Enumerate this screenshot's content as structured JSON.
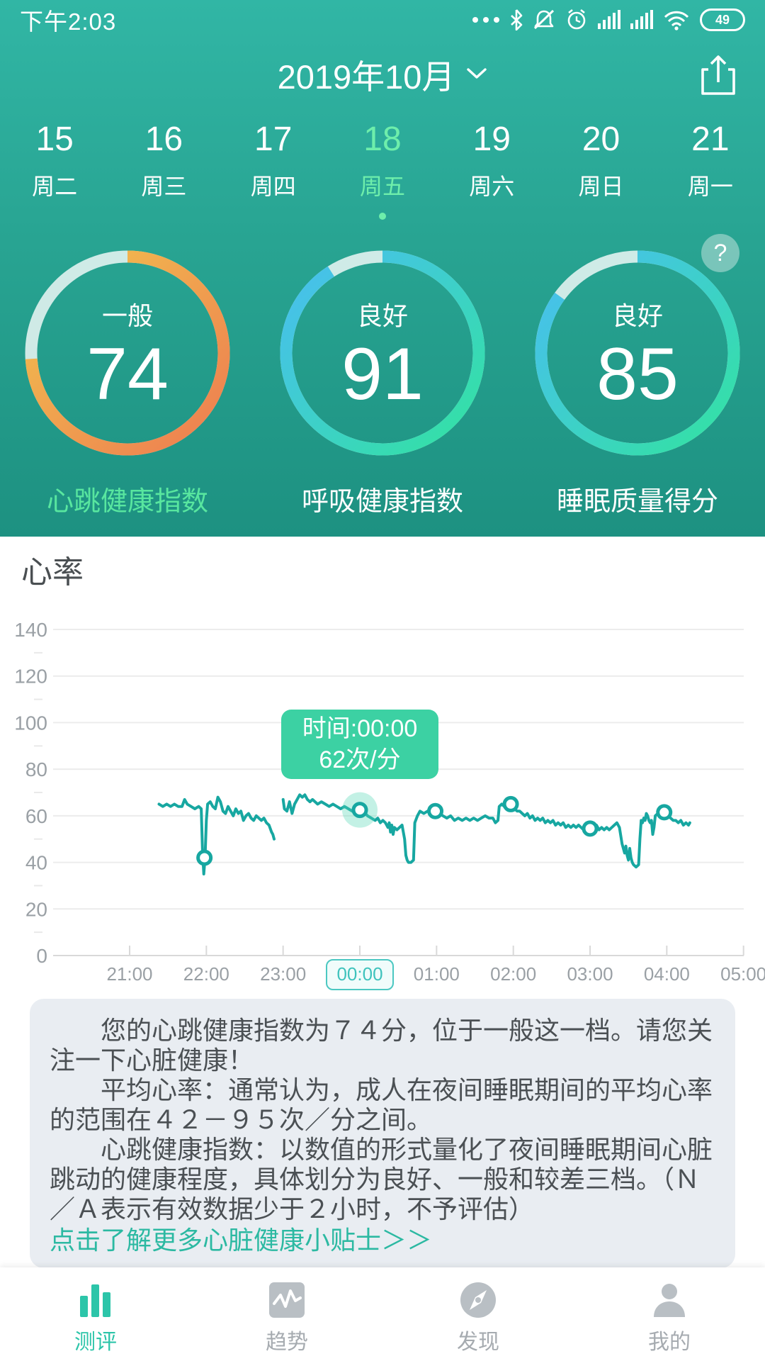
{
  "colors": {
    "accent": "#2cc5a9",
    "hero_top": "#31b6a5",
    "hero_bottom": "#1d9181",
    "selected_day": "#6eeeab",
    "gauge_track": "rgba(255,255,255,0.78)",
    "line": "#17a7a1",
    "tooltip_bg": "#3cd1a3",
    "link": "#2cb9a2",
    "inactive_icon": "#b9bfc4"
  },
  "status_bar": {
    "time": "下午2:03",
    "battery_percent": "49",
    "icons": [
      "more-dots",
      "bluetooth",
      "mute",
      "alarm-clock",
      "signal",
      "signal",
      "wifi",
      "battery"
    ]
  },
  "header": {
    "month": "2019年10月"
  },
  "date_picker": {
    "days": [
      {
        "date": "15",
        "weekday": "周二",
        "selected": false
      },
      {
        "date": "16",
        "weekday": "周三",
        "selected": false
      },
      {
        "date": "17",
        "weekday": "周四",
        "selected": false
      },
      {
        "date": "18",
        "weekday": "周五",
        "selected": true
      },
      {
        "date": "19",
        "weekday": "周六",
        "selected": false
      },
      {
        "date": "20",
        "weekday": "周日",
        "selected": false
      },
      {
        "date": "21",
        "weekday": "周一",
        "selected": false
      }
    ]
  },
  "gauges": [
    {
      "status": "一般",
      "score": "74",
      "percent": 74,
      "label": "心跳健康指数",
      "color_start": "#f2c44e",
      "color_end": "#ed7c50",
      "selected": true
    },
    {
      "status": "良好",
      "score": "91",
      "percent": 91,
      "label": "呼吸健康指数",
      "color_start": "#49bdf2",
      "color_end": "#32e3a0",
      "selected": false
    },
    {
      "status": "良好",
      "score": "85",
      "percent": 85,
      "label": "睡眠质量得分",
      "color_start": "#49bdf2",
      "color_end": "#32e3a0",
      "selected": false
    }
  ],
  "help": {
    "glyph": "?"
  },
  "chart_section": {
    "title": "心率"
  },
  "chart_data": {
    "type": "line",
    "title": "心率",
    "xlabel": "",
    "ylabel": "次/分",
    "ylim": [
      0,
      140
    ],
    "yticks": [
      0,
      20,
      40,
      60,
      80,
      100,
      120,
      140
    ],
    "grid": true,
    "x_unit": "minutes_from_21:00",
    "xticks": [
      {
        "t": 0,
        "label": "21:00",
        "active": false
      },
      {
        "t": 60,
        "label": "22:00",
        "active": false
      },
      {
        "t": 120,
        "label": "23:00",
        "active": false
      },
      {
        "t": 180,
        "label": "00:00",
        "active": true
      },
      {
        "t": 240,
        "label": "01:00",
        "active": false
      },
      {
        "t": 300,
        "label": "02:00",
        "active": false
      },
      {
        "t": 360,
        "label": "03:00",
        "active": false
      },
      {
        "t": 420,
        "label": "04:00",
        "active": false
      },
      {
        "t": 480,
        "label": "05:00",
        "active": false
      }
    ],
    "series": [
      {
        "name": "心率",
        "segments": [
          [
            [
              23,
              65
            ],
            [
              26,
              64
            ],
            [
              29,
              65
            ],
            [
              32,
              64
            ],
            [
              35,
              65
            ],
            [
              38,
              64
            ],
            [
              41,
              64
            ],
            [
              43,
              67
            ],
            [
              45,
              65
            ],
            [
              48,
              64
            ],
            [
              51,
              63
            ],
            [
              54,
              64
            ],
            [
              56,
              63
            ],
            [
              57,
              45
            ],
            [
              58,
              35
            ],
            [
              59,
              42
            ],
            [
              60,
              58
            ],
            [
              61,
              65
            ],
            [
              63,
              66
            ],
            [
              65,
              64
            ],
            [
              67,
              63
            ],
            [
              69,
              68
            ],
            [
              71,
              66
            ],
            [
              73,
              62
            ],
            [
              75,
              61
            ],
            [
              77,
              64
            ],
            [
              79,
              62
            ],
            [
              81,
              60
            ],
            [
              83,
              63
            ],
            [
              85,
              61
            ],
            [
              87,
              62
            ],
            [
              89,
              58
            ],
            [
              91,
              60
            ],
            [
              93,
              61
            ],
            [
              95,
              59
            ],
            [
              97,
              58
            ],
            [
              99,
              60
            ],
            [
              101,
              59
            ],
            [
              103,
              58
            ],
            [
              105,
              59
            ],
            [
              107,
              57
            ],
            [
              109,
              56
            ],
            [
              111,
              53
            ],
            [
              112,
              52
            ],
            [
              113,
              50
            ]
          ],
          [
            [
              120,
              67
            ],
            [
              121,
              63
            ],
            [
              123,
              62
            ],
            [
              125,
              66
            ],
            [
              127,
              61
            ],
            [
              129,
              65
            ],
            [
              131,
              67
            ],
            [
              133,
              69
            ],
            [
              135,
              68
            ],
            [
              137,
              69
            ],
            [
              139,
              67
            ],
            [
              141,
              66
            ],
            [
              143,
              67
            ],
            [
              145,
              66
            ],
            [
              147,
              65
            ],
            [
              150,
              66
            ],
            [
              153,
              65
            ],
            [
              156,
              64
            ],
            [
              159,
              65
            ],
            [
              162,
              64
            ],
            [
              165,
              63
            ],
            [
              168,
              64
            ],
            [
              171,
              63
            ],
            [
              174,
              62
            ],
            [
              177,
              63
            ],
            [
              180,
              62
            ],
            [
              183,
              62
            ],
            [
              186,
              60
            ],
            [
              189,
              59
            ],
            [
              192,
              58
            ],
            [
              194,
              59
            ],
            [
              196,
              57
            ],
            [
              198,
              58
            ],
            [
              200,
              57
            ],
            [
              202,
              55
            ],
            [
              203,
              57
            ],
            [
              204,
              53
            ],
            [
              205,
              56
            ],
            [
              206,
              52
            ],
            [
              207,
              55
            ],
            [
              209,
              54
            ],
            [
              211,
              55
            ],
            [
              213,
              56
            ],
            [
              215,
              50
            ],
            [
              216,
              43
            ],
            [
              217,
              41
            ],
            [
              218,
              40
            ],
            [
              220,
              40
            ],
            [
              222,
              41
            ],
            [
              223,
              57
            ],
            [
              225,
              60
            ],
            [
              227,
              62
            ],
            [
              230,
              61
            ],
            [
              233,
              62
            ],
            [
              236,
              62
            ],
            [
              239,
              62
            ],
            [
              242,
              61
            ],
            [
              245,
              60
            ],
            [
              248,
              59
            ],
            [
              251,
              60
            ],
            [
              254,
              58
            ],
            [
              257,
              59
            ],
            [
              260,
              58
            ],
            [
              263,
              59
            ],
            [
              266,
              58
            ],
            [
              269,
              59
            ],
            [
              272,
              58
            ],
            [
              275,
              59
            ],
            [
              278,
              60
            ],
            [
              281,
              59
            ],
            [
              284,
              59
            ],
            [
              286,
              57
            ],
            [
              288,
              58
            ],
            [
              289,
              64
            ],
            [
              291,
              65
            ],
            [
              293,
              64
            ],
            [
              295,
              65
            ],
            [
              297,
              65
            ],
            [
              299,
              64
            ],
            [
              301,
              63
            ],
            [
              303,
              62
            ],
            [
              305,
              62
            ],
            [
              307,
              61
            ],
            [
              309,
              60
            ],
            [
              311,
              61
            ],
            [
              313,
              59
            ],
            [
              315,
              60
            ],
            [
              317,
              58
            ],
            [
              319,
              59
            ],
            [
              321,
              58
            ],
            [
              323,
              59
            ],
            [
              325,
              57
            ],
            [
              327,
              58
            ],
            [
              329,
              57
            ],
            [
              331,
              58
            ],
            [
              333,
              56
            ],
            [
              335,
              57
            ],
            [
              337,
              56
            ],
            [
              339,
              57
            ],
            [
              341,
              55
            ],
            [
              343,
              56
            ],
            [
              345,
              55
            ],
            [
              347,
              56
            ],
            [
              349,
              55
            ],
            [
              351,
              56
            ],
            [
              353,
              55
            ],
            [
              355,
              54
            ],
            [
              357,
              55
            ],
            [
              359,
              54
            ],
            [
              361,
              55
            ],
            [
              363,
              54
            ],
            [
              365,
              56
            ],
            [
              367,
              54
            ],
            [
              369,
              55
            ],
            [
              371,
              54
            ],
            [
              373,
              55
            ],
            [
              375,
              54
            ],
            [
              377,
              55
            ],
            [
              379,
              56
            ],
            [
              381,
              57
            ],
            [
              383,
              55
            ],
            [
              385,
              48
            ],
            [
              387,
              44
            ],
            [
              388,
              47
            ],
            [
              389,
              43
            ],
            [
              390,
              41
            ],
            [
              391,
              46
            ],
            [
              392,
              42
            ],
            [
              393,
              40
            ],
            [
              394,
              39
            ],
            [
              396,
              38
            ],
            [
              398,
              39
            ],
            [
              399,
              50
            ],
            [
              400,
              58
            ],
            [
              401,
              57
            ],
            [
              402,
              59
            ],
            [
              403,
              58
            ],
            [
              404,
              61
            ],
            [
              405,
              60
            ],
            [
              406,
              58
            ],
            [
              407,
              57
            ],
            [
              408,
              58
            ],
            [
              409,
              52
            ],
            [
              410,
              55
            ],
            [
              411,
              60
            ],
            [
              413,
              61
            ],
            [
              415,
              62
            ],
            [
              417,
              62
            ],
            [
              419,
              61
            ],
            [
              421,
              60
            ],
            [
              423,
              59
            ],
            [
              425,
              58
            ],
            [
              427,
              58
            ],
            [
              429,
              57
            ],
            [
              431,
              58
            ],
            [
              433,
              56
            ],
            [
              435,
              57
            ],
            [
              437,
              56
            ],
            [
              438,
              57
            ]
          ]
        ]
      }
    ],
    "markers": [
      {
        "t": 58.5,
        "v": 42,
        "selected": false
      },
      {
        "t": 180,
        "v": 62.5,
        "selected": true
      },
      {
        "t": 239,
        "v": 62,
        "selected": false
      },
      {
        "t": 298,
        "v": 65,
        "selected": false
      },
      {
        "t": 360,
        "v": 54.5,
        "selected": false
      },
      {
        "t": 418,
        "v": 61.5,
        "selected": false
      }
    ],
    "tooltip": {
      "line1": "时间:00:00",
      "line2": "62次/分"
    },
    "legend_position": "none"
  },
  "info_panel": {
    "paragraphs": [
      "您的心跳健康指数为７４分，位于一般这一档。请您关注一下心脏健康！",
      "平均心率：通常认为，成人在夜间睡眠期间的平均心率的范围在４２－９５次／分之间。",
      "心跳健康指数：以数值的形式量化了夜间睡眠期间心脏跳动的健康程度，具体划分为良好、一般和较差三档。（Ｎ／Ａ表示有效数据少于２小时，不予评估）"
    ],
    "link": "点击了解更多心脏健康小贴士＞＞"
  },
  "nav": {
    "items": [
      {
        "label": "测评",
        "icon": "bar-chart",
        "active": true
      },
      {
        "label": "趋势",
        "icon": "trend",
        "active": false
      },
      {
        "label": "发现",
        "icon": "compass",
        "active": false
      },
      {
        "label": "我的",
        "icon": "person",
        "active": false
      }
    ]
  }
}
